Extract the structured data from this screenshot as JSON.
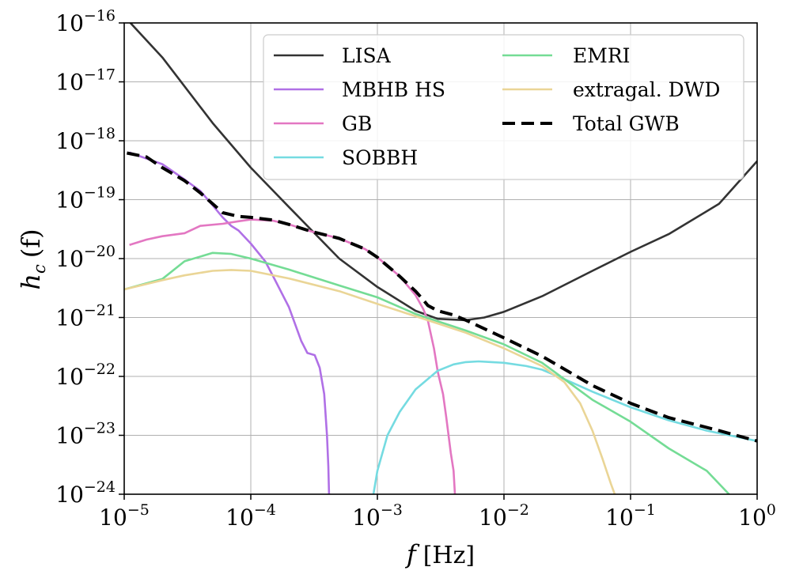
{
  "chart_data": {
    "type": "line",
    "x_scale": "log",
    "y_scale": "log",
    "xlim": [
      1e-05,
      1
    ],
    "ylim": [
      1e-24,
      1e-16
    ],
    "grid": true,
    "legend_placement": "top-right",
    "legend_columns": 2,
    "x_ticks": [
      {
        "mant": "10",
        "exp": "−5",
        "value": 1e-05
      },
      {
        "mant": "10",
        "exp": "−4",
        "value": 0.0001
      },
      {
        "mant": "10",
        "exp": "−3",
        "value": 0.001
      },
      {
        "mant": "10",
        "exp": "−2",
        "value": 0.01
      },
      {
        "mant": "10",
        "exp": "−1",
        "value": 0.1
      },
      {
        "mant": "10",
        "exp": "0",
        "value": 1
      }
    ],
    "y_ticks": [
      {
        "mant": "10",
        "exp": "−16",
        "value": 1e-16
      },
      {
        "mant": "10",
        "exp": "−17",
        "value": 1e-17
      },
      {
        "mant": "10",
        "exp": "−18",
        "value": 1e-18
      },
      {
        "mant": "10",
        "exp": "−19",
        "value": 1e-19
      },
      {
        "mant": "10",
        "exp": "−20",
        "value": 1e-20
      },
      {
        "mant": "10",
        "exp": "−21",
        "value": 1e-21
      },
      {
        "mant": "10",
        "exp": "−22",
        "value": 1e-22
      },
      {
        "mant": "10",
        "exp": "−23",
        "value": 1e-23
      },
      {
        "mant": "10",
        "exp": "−24",
        "value": 1e-24
      }
    ],
    "xlabel": {
      "var": "f",
      "unit": "[Hz]"
    },
    "ylabel": {
      "var": "h",
      "sub": "c",
      "arg": "(f)"
    },
    "series": [
      {
        "name": "LISA",
        "color": "#333333",
        "dash": "solid",
        "x": [
          1e-05,
          2e-05,
          5e-05,
          0.0001,
          0.0002,
          0.0005,
          0.001,
          0.002,
          0.003,
          0.005,
          0.007,
          0.01,
          0.02,
          0.05,
          0.1,
          0.2,
          0.5,
          1
        ],
        "y": [
          1.3e-16,
          2.6e-17,
          2e-18,
          3.5e-19,
          7.5e-20,
          1e-20,
          3.3e-21,
          1.3e-21,
          9.5e-22,
          9e-22,
          1e-21,
          1.25e-21,
          2.3e-21,
          6.2e-21,
          1.3e-20,
          2.6e-20,
          8.5e-20,
          4.5e-19
        ]
      },
      {
        "name": "MBHB HS",
        "color": "#b070e6",
        "dash": "solid",
        "x": [
          1.1e-05,
          2e-05,
          3e-05,
          4e-05,
          5e-05,
          6e-05,
          7e-05,
          8e-05,
          0.0001,
          0.00013,
          0.00015,
          0.0002,
          0.00025,
          0.00028,
          0.00032,
          0.00035,
          0.00038,
          0.0004,
          0.00041,
          0.000415
        ],
        "y": [
          6.3e-19,
          4e-19,
          2.2e-19,
          1.4e-19,
          8e-20,
          5e-20,
          3.6e-20,
          3e-20,
          1.8e-20,
          9e-21,
          5e-21,
          1.5e-21,
          4e-22,
          2.5e-22,
          2.3e-22,
          1.4e-22,
          5e-23,
          1e-23,
          3e-24,
          1e-24
        ]
      },
      {
        "name": "GB",
        "color": "#e377c2",
        "dash": "solid",
        "x": [
          1.1e-05,
          1.5e-05,
          2e-05,
          3e-05,
          4e-05,
          6e-05,
          8e-05,
          0.0001,
          0.00015,
          0.0002,
          0.0003,
          0.0005,
          0.0008,
          0.001,
          0.0015,
          0.002,
          0.0023,
          0.0025,
          0.0028,
          0.003,
          0.0033,
          0.0035,
          0.0038,
          0.004,
          0.0041
        ],
        "y": [
          1.7e-20,
          2.1e-20,
          2.4e-20,
          2.7e-20,
          3.6e-20,
          3.9e-20,
          4.3e-20,
          4.6e-20,
          4.4e-20,
          3.8e-20,
          2.9e-20,
          2.2e-20,
          1.45e-20,
          1.05e-20,
          5e-21,
          2.4e-21,
          1.4e-21,
          9e-22,
          3e-22,
          1.2e-22,
          5e-23,
          2e-23,
          5e-24,
          2.5e-24,
          1e-24
        ]
      },
      {
        "name": "SOBBH",
        "color": "#75dbe1",
        "dash": "solid",
        "x": [
          0.00093,
          0.001,
          0.0012,
          0.0015,
          0.002,
          0.003,
          0.004,
          0.005,
          0.0063,
          0.008,
          0.01,
          0.015,
          0.02,
          0.03,
          0.05,
          0.1,
          0.2,
          0.4,
          1
        ],
        "y": [
          1e-24,
          2.5e-24,
          1e-23,
          2.5e-23,
          6e-23,
          1.25e-22,
          1.6e-22,
          1.75e-22,
          1.8e-22,
          1.75e-22,
          1.7e-22,
          1.5e-22,
          1.3e-22,
          9e-23,
          5.5e-23,
          3e-23,
          1.8e-23,
          1.2e-23,
          8e-24
        ]
      },
      {
        "name": "EMRI",
        "color": "#74dc95",
        "dash": "solid",
        "x": [
          1e-05,
          2e-05,
          3e-05,
          5e-05,
          7e-05,
          0.0001,
          0.0002,
          0.0005,
          0.001,
          0.002,
          0.005,
          0.01,
          0.02,
          0.03,
          0.05,
          0.1,
          0.2,
          0.4,
          0.6
        ],
        "y": [
          3e-21,
          4.5e-21,
          9e-21,
          1.25e-20,
          1.2e-20,
          1e-20,
          6.5e-21,
          3.5e-21,
          2.2e-21,
          1.15e-21,
          6e-22,
          3.5e-22,
          1.7e-22,
          9e-23,
          4e-23,
          1.7e-23,
          6e-24,
          2.5e-24,
          1e-24
        ]
      },
      {
        "name": "extragal. DWD",
        "color": "#ead596",
        "dash": "solid",
        "x": [
          1e-05,
          2e-05,
          3e-05,
          5e-05,
          7e-05,
          0.0001,
          0.0002,
          0.0005,
          0.001,
          0.002,
          0.005,
          0.01,
          0.02,
          0.03,
          0.04,
          0.05,
          0.06,
          0.07,
          0.075
        ],
        "y": [
          3e-21,
          4.3e-21,
          5.2e-21,
          6.2e-21,
          6.4e-21,
          6.2e-21,
          4.6e-21,
          2.8e-21,
          1.7e-21,
          1.05e-21,
          5.5e-22,
          3e-22,
          1.5e-22,
          8e-23,
          3.5e-23,
          1.2e-23,
          4e-24,
          1.5e-24,
          1e-24
        ]
      },
      {
        "name": "Total GWB",
        "color": "#000000",
        "dash": "dashed",
        "x": [
          1.05e-05,
          1.5e-05,
          2e-05,
          3e-05,
          4e-05,
          5e-05,
          6e-05,
          8e-05,
          0.0001,
          0.00015,
          0.0002,
          0.0003,
          0.0005,
          0.0008,
          0.001,
          0.0015,
          0.002,
          0.0023,
          0.0025,
          0.003,
          0.004,
          0.005,
          0.01,
          0.02,
          0.05,
          0.1,
          0.2,
          0.5,
          1
        ],
        "y": [
          6.2e-19,
          5.3e-19,
          3.5e-19,
          2.1e-19,
          1.3e-19,
          8.5e-20,
          6e-20,
          5.2e-20,
          5e-20,
          4.5e-20,
          3.8e-20,
          2.9e-20,
          2.2e-20,
          1.45e-20,
          1.05e-20,
          5e-21,
          2.8e-21,
          2e-21,
          1.6e-21,
          1.3e-21,
          1.1e-21,
          9e-22,
          4.5e-22,
          2.2e-22,
          7e-23,
          3.5e-23,
          2e-23,
          1.2e-23,
          8e-24
        ]
      }
    ]
  }
}
